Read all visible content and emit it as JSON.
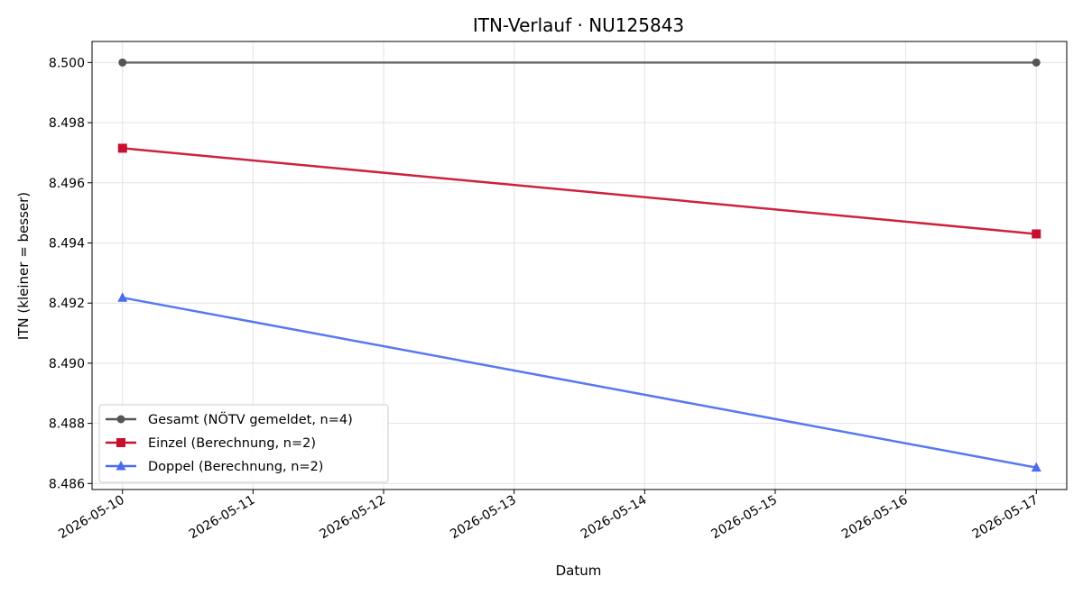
{
  "chart_data": {
    "type": "line",
    "title": "ITN-Verlauf · NU125843",
    "xlabel": "Datum",
    "ylabel": "ITN  (kleiner = besser)",
    "x_tick_labels": [
      "2026-05-10",
      "2026-05-11",
      "2026-05-12",
      "2026-05-13",
      "2026-05-14",
      "2026-05-15",
      "2026-05-16",
      "2026-05-17"
    ],
    "y_tick_labels": [
      "8.486",
      "8.488",
      "8.490",
      "8.492",
      "8.494",
      "8.496",
      "8.498",
      "8.500"
    ],
    "ylim": [
      8.4858,
      8.5007
    ],
    "xlim": [
      "2026-05-09 18:24",
      "2026-05-17 05:36"
    ],
    "grid": true,
    "legend_position": "lower-left",
    "series": [
      {
        "name": "Gesamt (NÖTV gemeldet, n=4)",
        "color": "#555555",
        "marker": "circle",
        "x": [
          "2026-05-10",
          "2026-05-17"
        ],
        "y": [
          8.5,
          8.5
        ]
      },
      {
        "name": "Einzel (Berechnung, n=2)",
        "color": "#c8102e",
        "marker": "square",
        "x": [
          "2026-05-10",
          "2026-05-17"
        ],
        "y": [
          8.49715,
          8.4943
        ]
      },
      {
        "name": "Doppel (Berechnung, n=2)",
        "color": "#4a6cf0",
        "marker": "triangle",
        "x": [
          "2026-05-10",
          "2026-05-17"
        ],
        "y": [
          8.49218,
          8.48653
        ]
      }
    ]
  }
}
